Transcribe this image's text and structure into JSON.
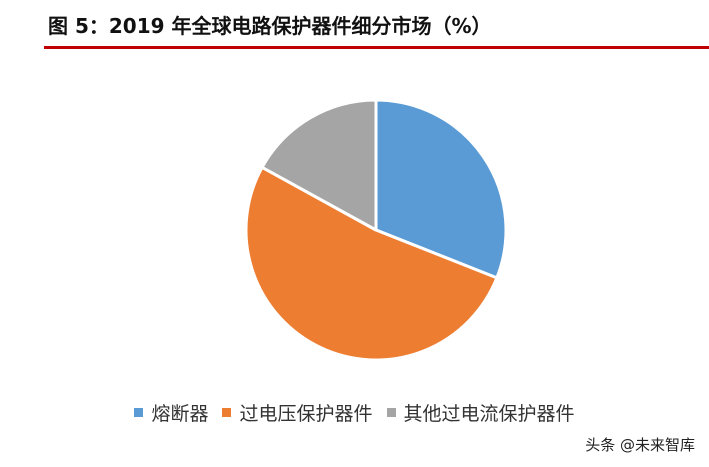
{
  "figure": {
    "title": "图 5：2019 年全球电路保护器件细分市场（%）",
    "rule_color": "#c00000"
  },
  "chart_data": {
    "type": "pie",
    "title": "",
    "slices": [
      {
        "label": "熔断器",
        "value": 31,
        "color": "#5b9bd5"
      },
      {
        "label": "过电压保护器件",
        "value": 52,
        "color": "#ed7d31"
      },
      {
        "label": "其他过电流保护器件",
        "value": 17,
        "color": "#a5a5a5"
      }
    ],
    "start_angle": "12 o'clock",
    "direction": "clockwise",
    "legend_position": "bottom"
  },
  "watermark": "头条 @未来智库"
}
